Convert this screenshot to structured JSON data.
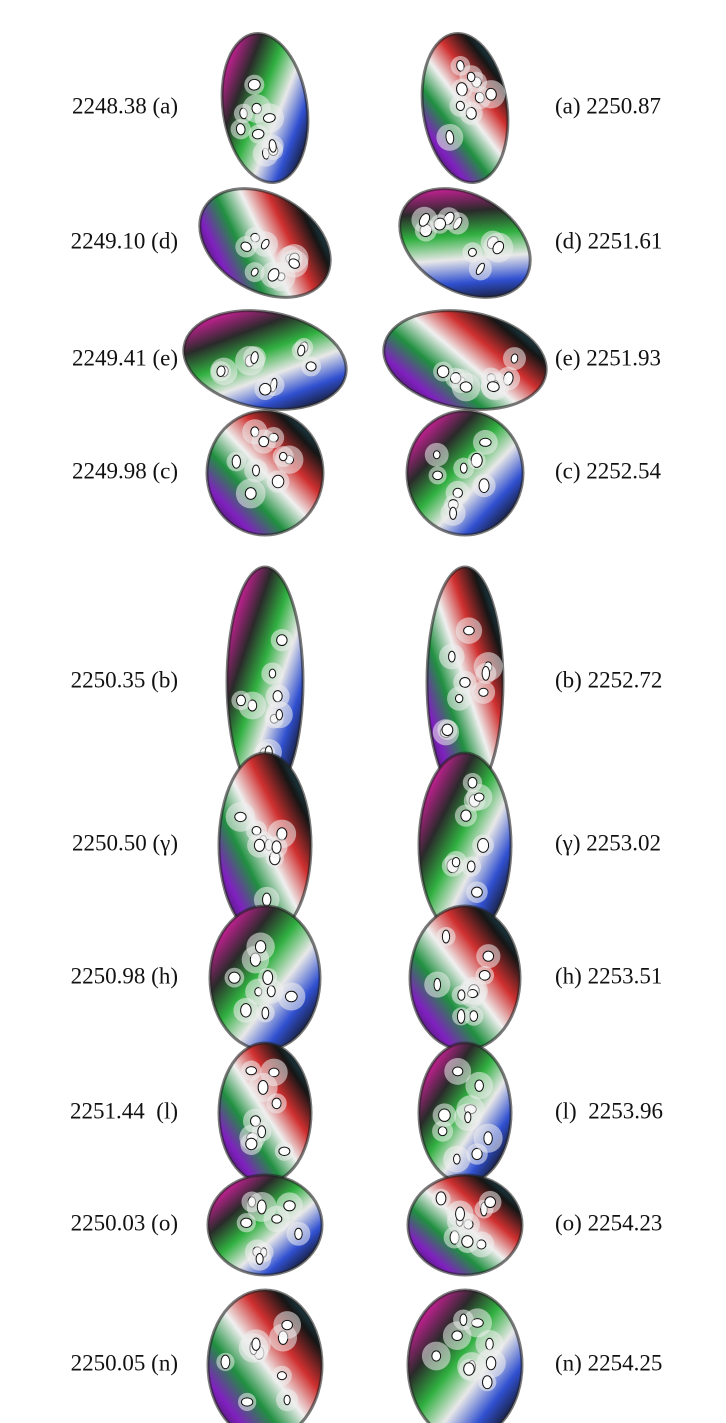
{
  "rows": [
    {
      "left": "2248.38 (a)",
      "right": "(a) 2250.87"
    },
    {
      "left": "2249.10 (d)",
      "right": "(d) 2251.61"
    },
    {
      "left": "2249.41 (e)",
      "right": "(e) 2251.93"
    },
    {
      "left": "2249.98 (c)",
      "right": "(c) 2252.54"
    },
    {
      "left": "2250.35 (b)",
      "right": "(b) 2252.72"
    },
    {
      "left": "2250.50 (γ)",
      "right": "(γ) 2253.02"
    },
    {
      "left": "2250.98 (h)",
      "right": "(h) 2253.51"
    },
    {
      "left": "2251.44  (l)",
      "right": "(l)  2253.96"
    },
    {
      "left": "2250.03 (o)",
      "right": "(o) 2254.23"
    },
    {
      "left": "2250.05 (n)",
      "right": "(n) 2254.25"
    }
  ]
}
